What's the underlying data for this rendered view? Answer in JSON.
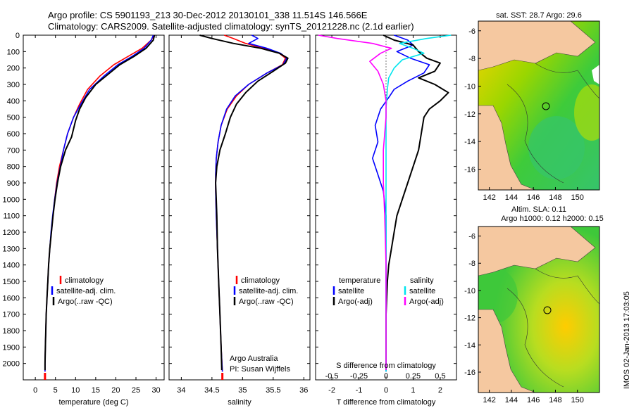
{
  "header": {
    "line1": "Argo profile: CS 5901193_213 30-Dec-2012 20130101_338 11.514S 146.566E",
    "line2": "Climatology: CARS2009. Satellite-adjusted climatology: synTS_20121228.nc (2.1d earlier)"
  },
  "colors": {
    "climatology": "#ff0000",
    "satellite": "#0000ff",
    "argo": "#000000",
    "salinity_sat": "#00e5ee",
    "salinity_argo": "#ff00ff",
    "land": "#f5c8a0"
  },
  "chart_data": [
    {
      "type": "line",
      "title": "",
      "xlabel": "temperature (deg C)",
      "ylabel": "",
      "xlim": [
        -3,
        32
      ],
      "ylim": [
        2100,
        0
      ],
      "xticks": [
        0,
        5,
        10,
        15,
        20,
        25,
        30
      ],
      "yticks": [
        0,
        100,
        200,
        300,
        400,
        500,
        600,
        700,
        800,
        900,
        1000,
        1100,
        1200,
        1300,
        1400,
        1500,
        1600,
        1700,
        1800,
        1900,
        2000
      ],
      "legend": [
        "climatology",
        "satellite-adj. clim.",
        "Argo(..raw -QC)"
      ],
      "series": [
        {
          "name": "climatology",
          "color": "#ff0000",
          "points": [
            [
              29.5,
              0
            ],
            [
              28.8,
              30
            ],
            [
              26.5,
              80
            ],
            [
              23,
              130
            ],
            [
              19.5,
              180
            ],
            [
              16,
              250
            ],
            [
              13,
              330
            ],
            [
              11,
              420
            ],
            [
              9.5,
              500
            ],
            [
              8,
              600
            ],
            [
              7,
              700
            ],
            [
              6,
              800
            ],
            [
              5.3,
              900
            ],
            [
              4.8,
              1000
            ],
            [
              4.4,
              1100
            ],
            [
              4,
              1200
            ],
            [
              3.6,
              1300
            ],
            [
              3.3,
              1400
            ],
            [
              3.1,
              1500
            ],
            [
              2.9,
              1600
            ],
            [
              2.7,
              1700
            ],
            [
              2.6,
              1800
            ],
            [
              2.5,
              1900
            ],
            [
              2.4,
              2000
            ],
            [
              2.4,
              2050
            ]
          ]
        },
        {
          "name": "satellite-adj. clim.",
          "color": "#0000ff",
          "points": [
            [
              29.3,
              0
            ],
            [
              28.8,
              30
            ],
            [
              27,
              80
            ],
            [
              24,
              130
            ],
            [
              20.5,
              180
            ],
            [
              17,
              250
            ],
            [
              13.5,
              330
            ],
            [
              11.3,
              420
            ],
            [
              9.5,
              500
            ],
            [
              8,
              600
            ],
            [
              7,
              700
            ],
            [
              6.2,
              800
            ],
            [
              5.4,
              900
            ],
            [
              4.8,
              1000
            ],
            [
              4.3,
              1100
            ],
            [
              3.9,
              1200
            ],
            [
              3.6,
              1300
            ],
            [
              3.3,
              1400
            ],
            [
              3.1,
              1500
            ],
            [
              2.9,
              1600
            ],
            [
              2.7,
              1700
            ],
            [
              2.6,
              1800
            ],
            [
              2.5,
              1900
            ],
            [
              2.4,
              2000
            ],
            [
              2.4,
              2050
            ]
          ]
        },
        {
          "name": "Argo(..raw -QC)",
          "color": "#000000",
          "points": [
            [
              29.6,
              0
            ],
            [
              29.3,
              30
            ],
            [
              27.5,
              80
            ],
            [
              24.5,
              130
            ],
            [
              21,
              180
            ],
            [
              18,
              240
            ],
            [
              15,
              300
            ],
            [
              12.5,
              380
            ],
            [
              11,
              450
            ],
            [
              10,
              520
            ],
            [
              9,
              620
            ],
            [
              7.5,
              700
            ],
            [
              6.3,
              800
            ],
            [
              5.5,
              900
            ],
            [
              4.9,
              1000
            ],
            [
              4.4,
              1100
            ],
            [
              4,
              1200
            ],
            [
              3.6,
              1300
            ],
            [
              3.3,
              1400
            ],
            [
              3.1,
              1500
            ],
            [
              2.9,
              1600
            ],
            [
              2.7,
              1700
            ],
            [
              2.6,
              1800
            ],
            [
              2.5,
              1900
            ],
            [
              2.4,
              2000
            ],
            [
              2.4,
              2040
            ]
          ]
        }
      ]
    },
    {
      "type": "line",
      "title": "",
      "xlabel": "salinity",
      "ylabel": "",
      "xlim": [
        33.8,
        36.1
      ],
      "ylim": [
        2100,
        0
      ],
      "xticks": [
        34,
        34.5,
        35,
        35.5,
        36
      ],
      "legend": [
        "climatology",
        "satellite-adj. clim.",
        "Argo(..raw -QC)"
      ],
      "annotation": [
        "Argo Australia",
        "PI: Susan Wijffels"
      ],
      "series": [
        {
          "name": "climatology",
          "color": "#ff0000",
          "points": [
            [
              34.7,
              0
            ],
            [
              34.85,
              20
            ],
            [
              35.05,
              50
            ],
            [
              35.35,
              80
            ],
            [
              35.6,
              110
            ],
            [
              35.7,
              140
            ],
            [
              35.65,
              180
            ],
            [
              35.4,
              230
            ],
            [
              35.1,
              300
            ],
            [
              34.9,
              370
            ],
            [
              34.75,
              450
            ],
            [
              34.65,
              550
            ],
            [
              34.6,
              650
            ],
            [
              34.57,
              750
            ],
            [
              34.56,
              850
            ],
            [
              34.56,
              950
            ],
            [
              34.57,
              1100
            ],
            [
              34.59,
              1300
            ],
            [
              34.61,
              1500
            ],
            [
              34.63,
              1700
            ],
            [
              34.65,
              1900
            ],
            [
              34.67,
              2050
            ]
          ]
        },
        {
          "name": "satellite-adj. clim.",
          "color": "#0000ff",
          "points": [
            [
              35.15,
              0
            ],
            [
              35.25,
              20
            ],
            [
              35.1,
              50
            ],
            [
              35.4,
              80
            ],
            [
              35.62,
              110
            ],
            [
              35.72,
              140
            ],
            [
              35.66,
              180
            ],
            [
              35.4,
              230
            ],
            [
              35.1,
              300
            ],
            [
              34.88,
              370
            ],
            [
              34.74,
              450
            ],
            [
              34.65,
              550
            ],
            [
              34.6,
              650
            ],
            [
              34.57,
              750
            ],
            [
              34.56,
              850
            ],
            [
              34.56,
              950
            ],
            [
              34.57,
              1100
            ],
            [
              34.59,
              1300
            ],
            [
              34.61,
              1500
            ],
            [
              34.63,
              1700
            ],
            [
              34.65,
              1900
            ],
            [
              34.67,
              2050
            ]
          ]
        },
        {
          "name": "Argo(..raw -QC)",
          "color": "#000000",
          "points": [
            [
              34.3,
              0
            ],
            [
              34.5,
              20
            ],
            [
              34.85,
              50
            ],
            [
              35.3,
              80
            ],
            [
              35.6,
              110
            ],
            [
              35.74,
              140
            ],
            [
              35.7,
              170
            ],
            [
              35.5,
              220
            ],
            [
              35.25,
              280
            ],
            [
              35.05,
              350
            ],
            [
              34.9,
              420
            ],
            [
              34.8,
              500
            ],
            [
              34.72,
              600
            ],
            [
              34.63,
              700
            ],
            [
              34.58,
              800
            ],
            [
              34.56,
              900
            ],
            [
              34.57,
              1000
            ],
            [
              34.58,
              1100
            ],
            [
              34.59,
              1300
            ],
            [
              34.61,
              1500
            ],
            [
              34.63,
              1700
            ],
            [
              34.65,
              1900
            ],
            [
              34.66,
              2040
            ]
          ]
        }
      ]
    },
    {
      "type": "line",
      "title": "",
      "xlabel_bottom": "T difference from climatology",
      "xlabel_top": "S difference from climatology",
      "ylabel": "",
      "xlim": [
        -2.6,
        2.6
      ],
      "ylim": [
        2100,
        0
      ],
      "xticks": [
        -2,
        -1,
        0,
        1,
        2
      ],
      "xticks_s_labels": [
        "-0.5",
        "-0.25",
        "0",
        "0.25",
        "0.5"
      ],
      "legend_t": [
        "temperature",
        "satellite",
        "Argo(-adj)"
      ],
      "legend_s": [
        "salinity",
        "satellite",
        "Argo(-adj)"
      ],
      "series": [
        {
          "name": "temperature satellite",
          "color": "#0000ff",
          "points": [
            [
              0.3,
              0
            ],
            [
              0.8,
              30
            ],
            [
              1.0,
              60
            ],
            [
              0.4,
              100
            ],
            [
              0.9,
              140
            ],
            [
              1.6,
              180
            ],
            [
              1.4,
              230
            ],
            [
              0.8,
              280
            ],
            [
              0.3,
              330
            ],
            [
              0.1,
              380
            ],
            [
              -0.2,
              450
            ],
            [
              -0.4,
              550
            ],
            [
              -0.3,
              650
            ],
            [
              -0.5,
              750
            ],
            [
              -0.3,
              850
            ],
            [
              -0.1,
              950
            ],
            [
              0.0,
              1100
            ],
            [
              0.0,
              1300
            ],
            [
              0.0,
              1500
            ],
            [
              0.0,
              1800
            ],
            [
              0.0,
              2050
            ]
          ]
        },
        {
          "name": "temperature Argo(-adj)",
          "color": "#000000",
          "points": [
            [
              -0.1,
              0
            ],
            [
              0.3,
              30
            ],
            [
              1.0,
              60
            ],
            [
              1.2,
              100
            ],
            [
              1.5,
              140
            ],
            [
              2.0,
              170
            ],
            [
              1.8,
              220
            ],
            [
              1.2,
              260
            ],
            [
              1.8,
              300
            ],
            [
              2.3,
              350
            ],
            [
              2.0,
              400
            ],
            [
              1.6,
              450
            ],
            [
              1.4,
              500
            ],
            [
              1.3,
              600
            ],
            [
              1.2,
              700
            ],
            [
              1.0,
              800
            ],
            [
              0.8,
              900
            ],
            [
              0.6,
              1000
            ],
            [
              0.4,
              1100
            ],
            [
              0.3,
              1200
            ],
            [
              0.2,
              1300
            ],
            [
              0.1,
              1400
            ],
            [
              0.05,
              1500
            ],
            [
              0.0,
              1700
            ],
            [
              0.0,
              2040
            ]
          ]
        },
        {
          "name": "salinity satellite",
          "color": "#00e5ee",
          "points": [
            [
              2.4,
              0
            ],
            [
              1.5,
              20
            ],
            [
              0.5,
              50
            ],
            [
              1.0,
              80
            ],
            [
              1.4,
              110
            ],
            [
              0.6,
              150
            ],
            [
              0.3,
              200
            ],
            [
              0.1,
              260
            ],
            [
              0.05,
              330
            ],
            [
              0.0,
              450
            ],
            [
              0.0,
              2050
            ]
          ]
        },
        {
          "name": "salinity Argo(-adj)",
          "color": "#ff00ff",
          "points": [
            [
              -2.5,
              0
            ],
            [
              -1.8,
              20
            ],
            [
              -0.5,
              50
            ],
            [
              0.2,
              80
            ],
            [
              -0.2,
              110
            ],
            [
              -0.6,
              160
            ],
            [
              -0.3,
              220
            ],
            [
              -0.1,
              300
            ],
            [
              0.0,
              400
            ],
            [
              0.0,
              500
            ],
            [
              -0.1,
              700
            ],
            [
              -0.1,
              900
            ],
            [
              -0.05,
              1100
            ],
            [
              0.0,
              1400
            ],
            [
              0.0,
              1550
            ],
            [
              0.0,
              2040
            ]
          ]
        }
      ]
    },
    {
      "type": "heatmap",
      "title": "sat. SST: 28.7  Argo: 29.6",
      "xticks": [
        142,
        144,
        146,
        148,
        150
      ],
      "yticks": [
        -6,
        -8,
        -10,
        -12,
        -14,
        -16
      ],
      "xlim": [
        141,
        152
      ],
      "ylim": [
        -17.5,
        -5.3
      ],
      "argo_position": {
        "lon": 146.566,
        "lat": -11.514
      }
    },
    {
      "type": "heatmap",
      "title": "Altim. SLA: 0.11",
      "subtitle": "Argo h1000: 0.12 h2000: 0.15",
      "xticks": [
        142,
        144,
        146,
        148,
        150
      ],
      "yticks": [
        -6,
        -8,
        -10,
        -12,
        -14,
        -16
      ],
      "xlim": [
        141,
        152
      ],
      "ylim": [
        -17.5,
        -5.3
      ],
      "argo_position": {
        "lon": 146.566,
        "lat": -11.514
      }
    }
  ],
  "footer": {
    "stamp": "IMOS 02-Jan-2013 17:03:05"
  }
}
